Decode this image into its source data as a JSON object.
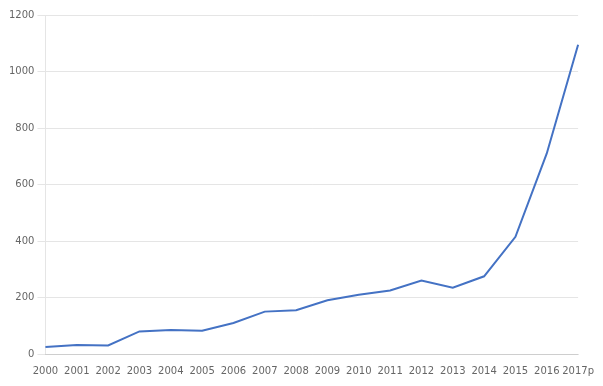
{
  "chart_data": {
    "type": "line",
    "categories": [
      "2000",
      "2001",
      "2002",
      "2003",
      "2004",
      "2005",
      "2006",
      "2007",
      "2008",
      "2009",
      "2010",
      "2011",
      "2012",
      "2013",
      "2014",
      "2015",
      "2016",
      "2017p"
    ],
    "values": [
      25,
      32,
      30,
      80,
      85,
      82,
      110,
      150,
      155,
      190,
      210,
      225,
      260,
      235,
      275,
      415,
      710,
      1095
    ],
    "color": "#4472c4",
    "ylim": [
      0,
      1200
    ],
    "yticks": [
      0,
      200,
      400,
      600,
      800,
      1000,
      1200
    ],
    "grid": true
  }
}
